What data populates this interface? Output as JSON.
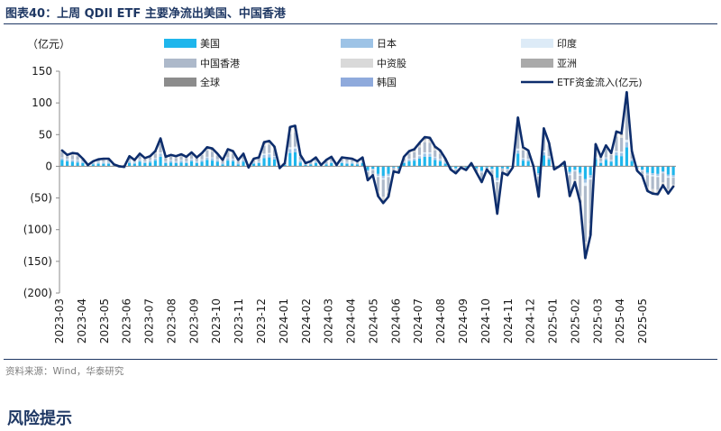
{
  "figure": {
    "title": "图表40：上周 QDII ETF 主要净流出美国、中国香港",
    "source": "资料来源：Wind，华泰研究"
  },
  "section_heading": "风险提示",
  "chart_data": {
    "type": "bar",
    "stacked": true,
    "unit_label": "（亿元）",
    "ylim": [
      -200,
      150
    ],
    "y_ticks": [
      150,
      100,
      50,
      0,
      -50,
      -100,
      -150,
      -200
    ],
    "y_tick_labels": [
      "150",
      "100",
      "50",
      "0",
      "(50)",
      "(100)",
      "(150)",
      "(200)"
    ],
    "x_tick_labels": [
      "2023-03",
      "2023-04",
      "2023-05",
      "2023-06",
      "2023-07",
      "2023-08",
      "2023-09",
      "2023-10",
      "2023-11",
      "2023-12",
      "2024-01",
      "2024-02",
      "2024-03",
      "2024-04",
      "2024-05",
      "2024-06",
      "2024-07",
      "2024-08",
      "2024-09",
      "2024-10",
      "2024-11",
      "2024-12",
      "2025-01",
      "2025-02",
      "2025-03",
      "2025-04",
      "2025-05"
    ],
    "weeks_per_month": 4.33,
    "legend": {
      "columns": 3,
      "entries": [
        {
          "label": "美国",
          "kind": "bar",
          "color": "#1fb6ec"
        },
        {
          "label": "日本",
          "kind": "bar",
          "color": "#9dc3e6"
        },
        {
          "label": "印度",
          "kind": "bar",
          "color": "#ddebf7"
        },
        {
          "label": "中国香港",
          "kind": "bar",
          "color": "#adb9ca"
        },
        {
          "label": "中资股",
          "kind": "bar",
          "color": "#d9d9d9"
        },
        {
          "label": "亚洲",
          "kind": "bar",
          "color": "#aaaaaa"
        },
        {
          "label": "全球",
          "kind": "bar",
          "color": "#8c8c8c"
        },
        {
          "label": "韩国",
          "kind": "bar",
          "color": "#8faadc"
        },
        {
          "label": "ETF资金流入(亿元)",
          "kind": "line",
          "color": "#0d2d6c"
        }
      ]
    },
    "line_series": {
      "name": "ETF资金流入(亿元)",
      "color": "#0d2d6c",
      "values": [
        25,
        18,
        21,
        20,
        12,
        2,
        8,
        11,
        12,
        12,
        3,
        0,
        -1,
        16,
        10,
        20,
        13,
        16,
        24,
        44,
        15,
        18,
        16,
        19,
        15,
        22,
        14,
        21,
        30,
        28,
        20,
        10,
        27,
        24,
        10,
        20,
        -2,
        12,
        14,
        38,
        40,
        31,
        -3,
        5,
        62,
        64,
        18,
        5,
        8,
        14,
        2,
        10,
        15,
        2,
        14,
        13,
        12,
        8,
        14,
        -22,
        -14,
        -47,
        -58,
        -48,
        -8,
        -10,
        15,
        24,
        27,
        37,
        46,
        45,
        31,
        25,
        12,
        -5,
        -11,
        -2,
        -6,
        5,
        -10,
        -25,
        -5,
        -15,
        -75,
        -10,
        -14,
        -2,
        77,
        30,
        25,
        0,
        -48,
        60,
        37,
        -5,
        0,
        7,
        -47,
        -25,
        -57,
        -145,
        -109,
        35,
        15,
        33,
        21,
        55,
        52,
        117,
        24,
        -7,
        -15,
        -39,
        -43,
        -44,
        -30,
        -43,
        -32
      ],
      "series_index": 0
    },
    "bar_series": [
      {
        "name": "美国",
        "color": "#1fb6ec",
        "values": [
          10,
          8,
          7,
          6,
          5,
          2,
          3,
          4,
          4,
          4,
          1,
          0,
          0,
          5,
          4,
          7,
          5,
          6,
          9,
          15,
          5,
          6,
          5,
          6,
          5,
          8,
          5,
          7,
          10,
          9,
          7,
          3,
          9,
          8,
          3,
          7,
          -1,
          4,
          5,
          13,
          14,
          11,
          -1,
          2,
          21,
          22,
          6,
          2,
          3,
          5,
          1,
          3,
          5,
          1,
          5,
          4,
          4,
          3,
          5,
          -6,
          -4,
          -12,
          -15,
          -12,
          -2,
          -3,
          5,
          8,
          9,
          12,
          15,
          15,
          10,
          8,
          4,
          -2,
          -3,
          -1,
          -2,
          2,
          -3,
          -7,
          -2,
          -4,
          -18,
          -3,
          -4,
          -1,
          20,
          9,
          8,
          0,
          -11,
          17,
          11,
          -1,
          0,
          2,
          -9,
          -5,
          -10,
          -20,
          -14,
          11,
          5,
          10,
          7,
          17,
          16,
          30,
          8,
          -2,
          -5,
          -10,
          -11,
          -12,
          -8,
          -13,
          -14
        ]
      },
      {
        "name": "日本",
        "color": "#9dc3e6",
        "values": [
          3,
          3,
          3,
          3,
          2,
          1,
          2,
          2,
          2,
          2,
          1,
          1,
          1,
          3,
          2,
          3,
          2,
          3,
          3,
          5,
          2,
          3,
          2,
          3,
          2,
          3,
          2,
          3,
          4,
          4,
          3,
          2,
          4,
          3,
          2,
          3,
          1,
          2,
          2,
          5,
          5,
          4,
          1,
          1,
          6,
          6,
          3,
          1,
          1,
          2,
          1,
          2,
          2,
          1,
          2,
          2,
          2,
          1,
          2,
          -2,
          -1,
          -3,
          -4,
          -3,
          -1,
          -1,
          2,
          3,
          3,
          4,
          5,
          5,
          4,
          3,
          2,
          -1,
          -1,
          0,
          -1,
          1,
          -1,
          -2,
          -1,
          -1,
          -4,
          -1,
          -1,
          0,
          5,
          3,
          3,
          0,
          -3,
          5,
          3,
          -1,
          0,
          1,
          -3,
          -2,
          -3,
          -6,
          -4,
          3,
          2,
          3,
          2,
          5,
          5,
          8,
          3,
          -1,
          -2,
          -3,
          -3,
          -3,
          -2,
          -3,
          -3
        ]
      },
      {
        "name": "印度",
        "color": "#ddebf7",
        "values": [
          1,
          1,
          1,
          1,
          1,
          0,
          1,
          1,
          1,
          1,
          0,
          0,
          0,
          1,
          1,
          1,
          1,
          1,
          1,
          2,
          1,
          1,
          1,
          1,
          1,
          1,
          1,
          1,
          1,
          1,
          1,
          0,
          1,
          1,
          0,
          1,
          0,
          1,
          1,
          2,
          2,
          1,
          0,
          0,
          3,
          3,
          1,
          0,
          0,
          1,
          0,
          0,
          1,
          0,
          1,
          1,
          1,
          0,
          1,
          -1,
          -1,
          -2,
          -2,
          -2,
          0,
          0,
          1,
          1,
          1,
          2,
          2,
          2,
          1,
          1,
          1,
          0,
          -1,
          0,
          0,
          0,
          0,
          -1,
          0,
          -1,
          -3,
          0,
          -1,
          0,
          3,
          1,
          1,
          0,
          -2,
          3,
          2,
          0,
          0,
          0,
          -2,
          -1,
          -2,
          -5,
          -3,
          1,
          1,
          1,
          1,
          2,
          2,
          4,
          1,
          0,
          -1,
          -1,
          -2,
          -2,
          -1,
          -2,
          -1
        ]
      },
      {
        "name": "中国香港",
        "color": "#adb9ca",
        "values": [
          8,
          4,
          6,
          6,
          3,
          -1,
          1,
          3,
          3,
          3,
          0,
          -2,
          -3,
          5,
          2,
          6,
          3,
          4,
          7,
          14,
          5,
          6,
          5,
          6,
          5,
          7,
          4,
          7,
          10,
          9,
          6,
          3,
          9,
          8,
          3,
          6,
          -1,
          3,
          4,
          12,
          13,
          10,
          -1,
          1,
          21,
          22,
          5,
          1,
          2,
          4,
          0,
          3,
          5,
          0,
          4,
          4,
          3,
          2,
          4,
          -10,
          -6,
          -22,
          -27,
          -22,
          -4,
          -4,
          5,
          8,
          9,
          12,
          16,
          15,
          10,
          8,
          4,
          -2,
          -5,
          -1,
          -2,
          1,
          -4,
          -11,
          -2,
          -7,
          -37,
          -4,
          -6,
          -1,
          35,
          12,
          10,
          0,
          -23,
          28,
          17,
          -2,
          0,
          3,
          -24,
          -13,
          -32,
          -88,
          -69,
          15,
          5,
          14,
          8,
          23,
          22,
          52,
          9,
          -3,
          -5,
          -18,
          -20,
          -20,
          -14,
          -18,
          -11
        ]
      },
      {
        "name": "中资股",
        "color": "#d9d9d9",
        "values": [
          2,
          1,
          2,
          2,
          1,
          0,
          1,
          1,
          1,
          1,
          0,
          0,
          0,
          1,
          1,
          2,
          1,
          1,
          2,
          4,
          1,
          1,
          1,
          1,
          1,
          2,
          1,
          2,
          2,
          2,
          2,
          1,
          2,
          2,
          1,
          2,
          0,
          1,
          1,
          3,
          3,
          3,
          0,
          0,
          6,
          6,
          2,
          0,
          1,
          1,
          0,
          1,
          1,
          0,
          1,
          1,
          1,
          1,
          1,
          -2,
          -1,
          -4,
          -5,
          -4,
          -1,
          -1,
          1,
          2,
          2,
          3,
          4,
          4,
          3,
          2,
          1,
          0,
          -1,
          0,
          0,
          0,
          -1,
          -2,
          0,
          -1,
          -7,
          -1,
          -1,
          0,
          8,
          3,
          2,
          0,
          -5,
          6,
          3,
          0,
          0,
          1,
          -5,
          -3,
          -6,
          -15,
          -11,
          3,
          1,
          3,
          2,
          5,
          4,
          13,
          2,
          -1,
          -1,
          -4,
          -4,
          -4,
          -3,
          -4,
          -2
        ]
      },
      {
        "name": "亚洲",
        "color": "#aaaaaa",
        "values": [
          1,
          1,
          1,
          1,
          0,
          0,
          0,
          0,
          1,
          1,
          1,
          1,
          1,
          1,
          0,
          1,
          1,
          1,
          2,
          3,
          1,
          1,
          2,
          1,
          1,
          1,
          1,
          1,
          2,
          2,
          1,
          1,
          1,
          1,
          1,
          1,
          0,
          1,
          1,
          2,
          2,
          1,
          0,
          1,
          3,
          3,
          1,
          1,
          1,
          1,
          0,
          1,
          1,
          0,
          1,
          1,
          1,
          1,
          1,
          -1,
          -1,
          -3,
          -4,
          -4,
          0,
          -1,
          1,
          1,
          2,
          2,
          2,
          2,
          2,
          2,
          0,
          0,
          -1,
          0,
          -1,
          1,
          -1,
          -2,
          0,
          -1,
          -4,
          -1,
          -1,
          0,
          4,
          1,
          1,
          0,
          -3,
          1,
          1,
          -1,
          0,
          0,
          -3,
          -1,
          -3,
          -8,
          -6,
          1,
          1,
          1,
          1,
          2,
          2,
          7,
          1,
          0,
          -1,
          -2,
          -2,
          -2,
          -1,
          -1,
          -1
        ]
      },
      {
        "name": "全球",
        "color": "#8c8c8c",
        "values": [
          0,
          0,
          1,
          1,
          0,
          0,
          0,
          0,
          0,
          0,
          0,
          0,
          0,
          0,
          0,
          0,
          0,
          0,
          0,
          1,
          0,
          0,
          0,
          1,
          0,
          0,
          0,
          0,
          1,
          1,
          0,
          0,
          1,
          1,
          0,
          0,
          0,
          0,
          0,
          1,
          1,
          1,
          0,
          0,
          1,
          1,
          0,
          0,
          0,
          0,
          0,
          0,
          0,
          0,
          0,
          0,
          0,
          0,
          0,
          0,
          0,
          -1,
          -1,
          -1,
          0,
          0,
          0,
          1,
          1,
          1,
          1,
          1,
          1,
          1,
          0,
          0,
          0,
          0,
          0,
          0,
          0,
          0,
          0,
          0,
          -1,
          0,
          0,
          0,
          1,
          1,
          0,
          0,
          -1,
          0,
          0,
          0,
          0,
          0,
          -1,
          0,
          -1,
          -2,
          -1,
          0,
          0,
          0,
          0,
          0,
          0,
          2,
          0,
          0,
          0,
          -1,
          -1,
          -1,
          -1,
          -1,
          0
        ]
      },
      {
        "name": "韩国",
        "color": "#8faadc",
        "values": [
          0,
          0,
          0,
          0,
          0,
          0,
          0,
          0,
          0,
          0,
          0,
          0,
          0,
          0,
          0,
          0,
          0,
          0,
          0,
          0,
          0,
          0,
          0,
          0,
          0,
          0,
          0,
          0,
          0,
          0,
          0,
          0,
          0,
          0,
          0,
          0,
          0,
          0,
          0,
          0,
          0,
          0,
          0,
          0,
          1,
          1,
          0,
          0,
          0,
          0,
          0,
          0,
          0,
          0,
          0,
          0,
          0,
          0,
          0,
          0,
          0,
          0,
          0,
          0,
          0,
          0,
          0,
          0,
          0,
          1,
          1,
          1,
          0,
          0,
          0,
          0,
          0,
          0,
          0,
          0,
          0,
          0,
          0,
          0,
          0,
          0,
          0,
          0,
          1,
          0,
          0,
          0,
          0,
          0,
          0,
          0,
          0,
          0,
          0,
          0,
          0,
          -1,
          -1,
          1,
          0,
          1,
          0,
          1,
          1,
          1,
          0,
          0,
          0,
          0,
          0,
          0,
          0,
          0,
          0
        ]
      }
    ]
  }
}
